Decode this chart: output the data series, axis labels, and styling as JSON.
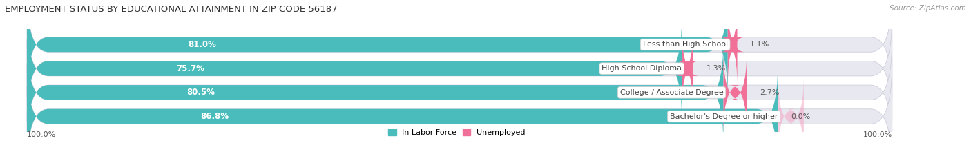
{
  "title": "EMPLOYMENT STATUS BY EDUCATIONAL ATTAINMENT IN ZIP CODE 56187",
  "source": "Source: ZipAtlas.com",
  "categories": [
    "Less than High School",
    "High School Diploma",
    "College / Associate Degree",
    "Bachelor's Degree or higher"
  ],
  "labor_force": [
    81.0,
    75.7,
    80.5,
    86.8
  ],
  "unemployed": [
    1.1,
    1.3,
    2.7,
    0.0
  ],
  "labor_force_color": "#4BBCBC",
  "unemployed_color": "#F07098",
  "unemployed_color_light": "#F4A0C0",
  "bar_bg_color": "#DCDCE8",
  "bar_bg_color2": "#E8E8F0",
  "background_color": "#FFFFFF",
  "title_fontsize": 9.5,
  "label_fontsize": 8.5,
  "pct_fontsize": 8.0,
  "source_fontsize": 7.5,
  "legend_fontsize": 8.0,
  "x_left_label": "100.0%",
  "x_right_label": "100.0%",
  "max_val": 100.0,
  "bar_height": 0.62,
  "n_rows": 4
}
